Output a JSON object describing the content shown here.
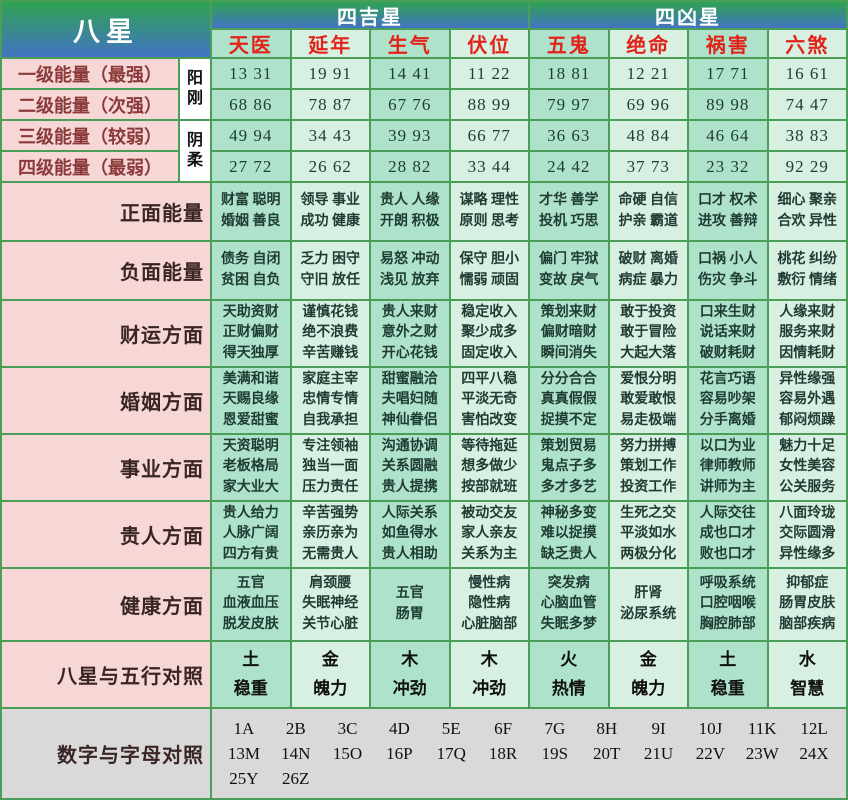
{
  "title": "八星",
  "groups": [
    "四吉星",
    "四凶星"
  ],
  "stars": [
    "天医",
    "延年",
    "生气",
    "伏位",
    "五鬼",
    "绝命",
    "祸害",
    "六煞"
  ],
  "yin_yang": [
    "阳刚",
    "阴柔"
  ],
  "energy_rows": [
    {
      "label": "一级能量（最强）",
      "values": [
        "13 31",
        "19 91",
        "14 41",
        "11 22",
        "18 81",
        "12 21",
        "17 71",
        "16 61"
      ]
    },
    {
      "label": "二级能量（次强）",
      "values": [
        "68 86",
        "78 87",
        "67 76",
        "88 99",
        "79 97",
        "69 96",
        "89 98",
        "74 47"
      ]
    },
    {
      "label": "三级能量（较弱）",
      "values": [
        "49 94",
        "34 43",
        "39 93",
        "66 77",
        "36 63",
        "48 84",
        "46 64",
        "38 83"
      ]
    },
    {
      "label": "四级能量（最弱）",
      "values": [
        "27 72",
        "26 62",
        "28 82",
        "33 44",
        "24 42",
        "37 73",
        "23 32",
        "92 29"
      ]
    }
  ],
  "aspect_rows": [
    {
      "label": "正面能量",
      "cells": [
        [
          "财富 聪明",
          "婚姻 善良"
        ],
        [
          "领导 事业",
          "成功 健康"
        ],
        [
          "贵人 人缘",
          "开朗 积极"
        ],
        [
          "谋略 理性",
          "原则 思考"
        ],
        [
          "才华 善学",
          "投机 巧思"
        ],
        [
          "命硬 自信",
          "护亲 霸道"
        ],
        [
          "口才 权术",
          "进攻 善辩"
        ],
        [
          "细心 聚亲",
          "合欢 异性"
        ]
      ]
    },
    {
      "label": "负面能量",
      "cells": [
        [
          "债务 自闭",
          "贫困 自负"
        ],
        [
          "乏力 困守",
          "守旧 放任"
        ],
        [
          "易怒 冲动",
          "浅见 放弃"
        ],
        [
          "保守 胆小",
          "懦弱 顽固"
        ],
        [
          "偏门 牢狱",
          "变故 戾气"
        ],
        [
          "破财 离婚",
          "病症 暴力"
        ],
        [
          "口祸 小人",
          "伤灾 争斗"
        ],
        [
          "桃花 纠纷",
          "敷衍 情绪"
        ]
      ]
    },
    {
      "label": "财运方面",
      "cells": [
        [
          "天助资财",
          "正财偏财",
          "得天独厚"
        ],
        [
          "谨慎花钱",
          "绝不浪费",
          "辛苦赚钱"
        ],
        [
          "贵人来财",
          "意外之财",
          "开心花钱"
        ],
        [
          "稳定收入",
          "聚少成多",
          "固定收入"
        ],
        [
          "策划来财",
          "偏财暗财",
          "瞬间消失"
        ],
        [
          "敢于投资",
          "敢于冒险",
          "大起大落"
        ],
        [
          "口来生财",
          "说话来财",
          "破财耗财"
        ],
        [
          "人缘来财",
          "服务来财",
          "因情耗财"
        ]
      ]
    },
    {
      "label": "婚姻方面",
      "cells": [
        [
          "美满和谐",
          "天赐良缘",
          "恩爱甜蜜"
        ],
        [
          "家庭主宰",
          "忠情专情",
          "自我承担"
        ],
        [
          "甜蜜融洽",
          "夫唱妇随",
          "神仙眷侣"
        ],
        [
          "四平八稳",
          "平淡无奇",
          "害怕改变"
        ],
        [
          "分分合合",
          "真真假假",
          "捉摸不定"
        ],
        [
          "爱恨分明",
          "敢爱敢恨",
          "易走极端"
        ],
        [
          "花言巧语",
          "容易吵架",
          "分手离婚"
        ],
        [
          "异性缘强",
          "容易外遇",
          "郁闷烦躁"
        ]
      ]
    },
    {
      "label": "事业方面",
      "cells": [
        [
          "天资聪明",
          "老板格局",
          "家大业大"
        ],
        [
          "专注领袖",
          "独当一面",
          "压力责任"
        ],
        [
          "沟通协调",
          "关系圆融",
          "贵人提携"
        ],
        [
          "等待拖延",
          "想多做少",
          "按部就班"
        ],
        [
          "策划贸易",
          "鬼点子多",
          "多才多艺"
        ],
        [
          "努力拼搏",
          "策划工作",
          "投资工作"
        ],
        [
          "以口为业",
          "律师教师",
          "讲师为主"
        ],
        [
          "魅力十足",
          "女性美容",
          "公关服务"
        ]
      ]
    },
    {
      "label": "贵人方面",
      "cells": [
        [
          "贵人给力",
          "人脉广阔",
          "四方有贵"
        ],
        [
          "辛苦强势",
          "亲历亲为",
          "无需贵人"
        ],
        [
          "人际关系",
          "如鱼得水",
          "贵人相助"
        ],
        [
          "被动交友",
          "家人亲友",
          "关系为主"
        ],
        [
          "神秘多变",
          "难以捉摸",
          "缺乏贵人"
        ],
        [
          "生死之交",
          "平淡如水",
          "两极分化"
        ],
        [
          "人际交往",
          "成也口才",
          "败也口才"
        ],
        [
          "八面玲珑",
          "交际圆滑",
          "异性缘多"
        ]
      ]
    },
    {
      "label": "健康方面",
      "cells": [
        [
          "五官",
          "血液血压",
          "脱发皮肤"
        ],
        [
          "肩颈腰",
          "失眠神经",
          "关节心脏"
        ],
        [
          "五官",
          "肠胃"
        ],
        [
          "慢性病",
          "隐性病",
          "心脏脑部"
        ],
        [
          "突发病",
          "心脑血管",
          "失眠多梦"
        ],
        [
          "肝肾",
          "泌尿系统"
        ],
        [
          "呼吸系统",
          "口腔咽喉",
          "胸腔肺部"
        ],
        [
          "抑郁症",
          "肠胃皮肤",
          "脑部疾病"
        ]
      ]
    },
    {
      "label": "八星与五行对照",
      "cells": [
        [
          "土",
          "稳重"
        ],
        [
          "金",
          "魄力"
        ],
        [
          "木",
          "冲劲"
        ],
        [
          "木",
          "冲劲"
        ],
        [
          "火",
          "热情"
        ],
        [
          "金",
          "魄力"
        ],
        [
          "土",
          "稳重"
        ],
        [
          "水",
          "智慧"
        ]
      ]
    }
  ],
  "letters_row": {
    "label": "数字与字母对照",
    "items": [
      "1A",
      "2B",
      "3C",
      "4D",
      "5E",
      "6F",
      "7G",
      "8H",
      "9I",
      "10J",
      "11K",
      "12L",
      "13M",
      "14N",
      "15O",
      "16P",
      "17Q",
      "18R",
      "19S",
      "20T",
      "21U",
      "22V",
      "23W",
      "24X",
      "25Y",
      "26Z"
    ]
  },
  "colors": {
    "grid_line": "#4a9e58",
    "header_gradient_top": "#2fa351",
    "header_gradient_bottom": "#4273c4",
    "cell_dark": "#aee2cb",
    "cell_light": "#d7f0e1",
    "label_pink": "#f7d6d6",
    "star_text_red": "#e2231a",
    "energy_label_text": "#8b3a3a",
    "bottom_gray": "#d9d9d9"
  }
}
